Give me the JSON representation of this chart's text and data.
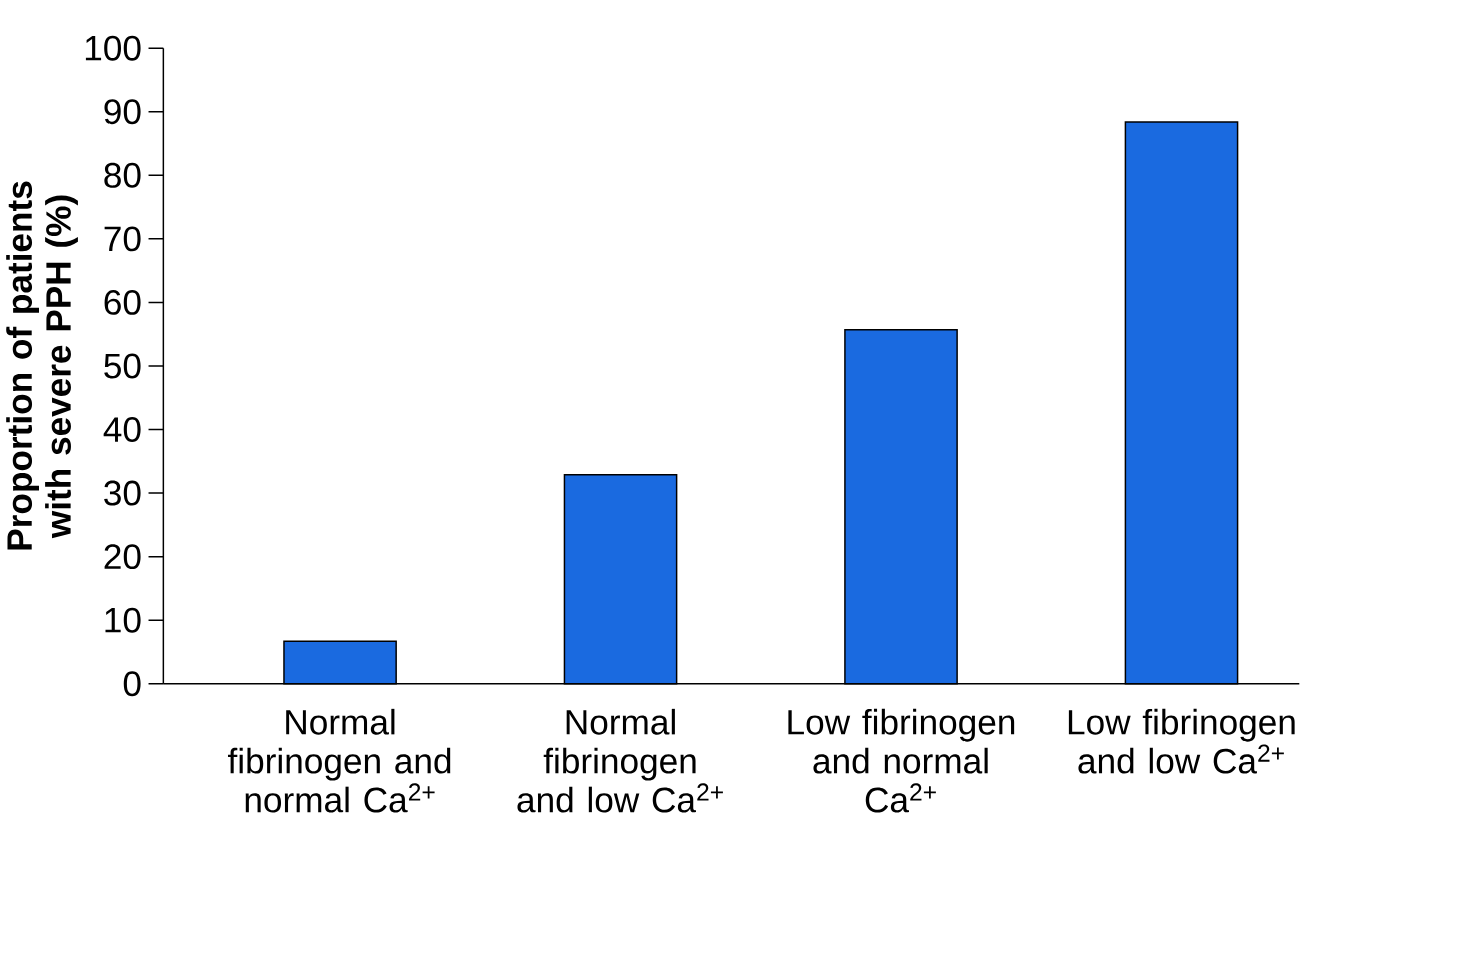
{
  "chart_data": {
    "type": "bar",
    "ylabel": "Proportion of patients with severe PPH (%)",
    "categories": [
      "Normal fibrinogen and normal Ca$^{2+}$",
      "Normal fibrinogen and low Ca$^{2+}$",
      "Low fibrinogen and normal Ca$^{2+}$",
      "Low fibrinogen and low Ca$^{2+}$"
    ],
    "values": [
      6.7,
      32.9,
      55.7,
      88.4
    ],
    "color": "#1a6ae0",
    "ylim": [
      0,
      100
    ],
    "yticks": [
      0,
      10,
      20,
      30,
      40,
      50,
      60,
      70,
      80,
      90,
      100
    ]
  }
}
